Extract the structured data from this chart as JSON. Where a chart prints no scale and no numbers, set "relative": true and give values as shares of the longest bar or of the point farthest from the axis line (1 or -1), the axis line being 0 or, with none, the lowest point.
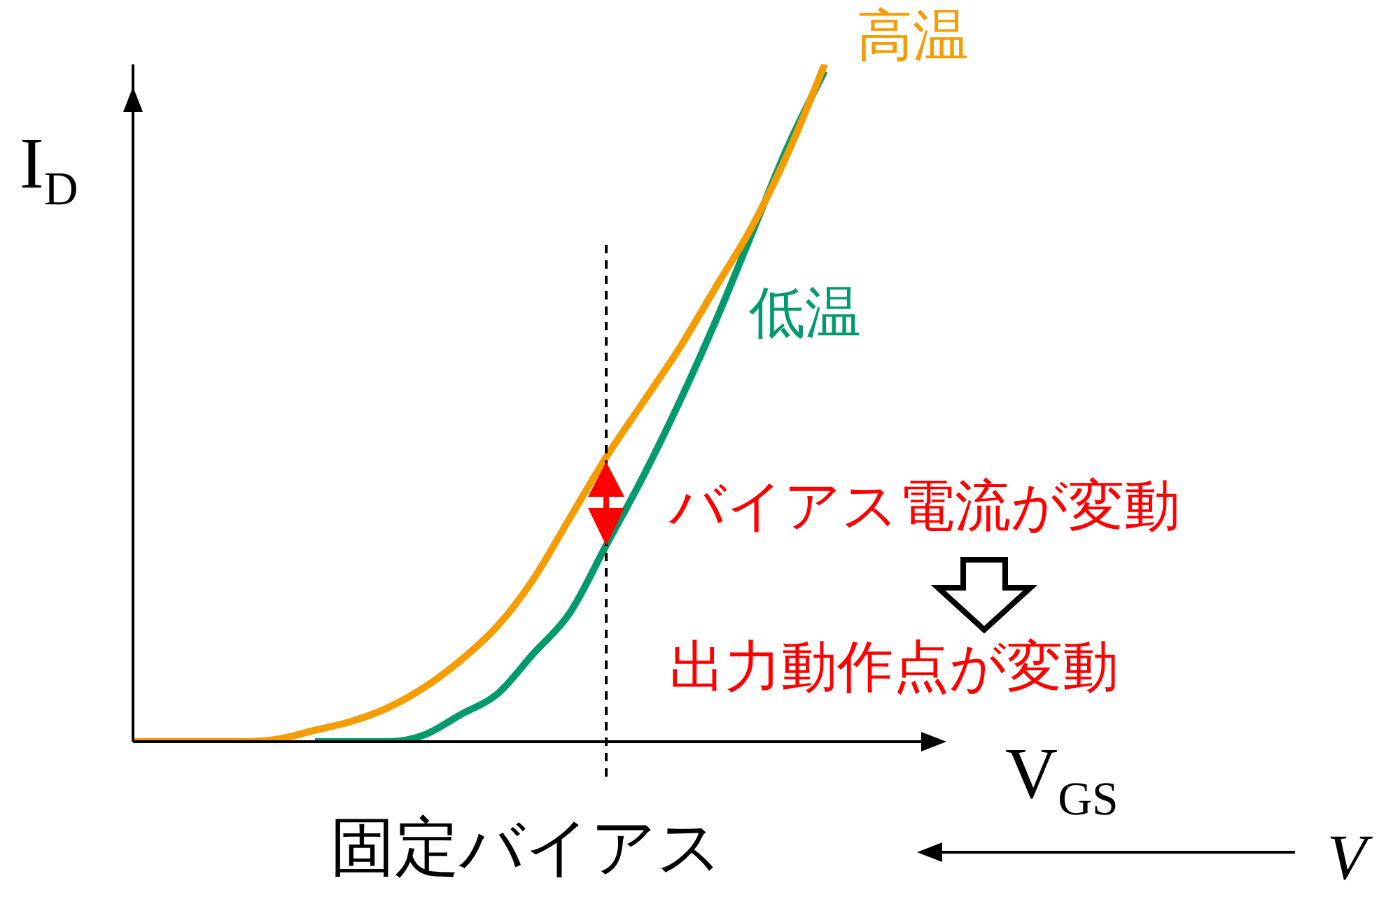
{
  "chart_data": {
    "type": "line",
    "relative": true,
    "xlabel": "V$_{GS}$",
    "ylabel": "I$_{D}$",
    "categories": [
      null,
      null,
      null,
      null,
      null,
      null,
      null,
      null,
      null,
      null,
      null,
      null,
      null,
      null,
      null,
      null,
      null,
      null,
      null,
      null,
      null,
      null,
      null
    ],
    "series": [
      {
        "name": "高温",
        "color": "#f59c00",
        "values": [
          0,
          0,
          0,
          0,
          0.004,
          0.017,
          0.03,
          0.05,
          0.08,
          0.12,
          0.17,
          0.24,
          0.33,
          0.42,
          0.5,
          0.58,
          0.67,
          0.76,
          0.87,
          1,
          null,
          null,
          null
        ]
      },
      {
        "name": "低温",
        "color": "#009a6e",
        "values": [
          null,
          null,
          null,
          null,
          null,
          0,
          0,
          0,
          0.01,
          0.04,
          0.07,
          0.13,
          0.19,
          0.29,
          0.39,
          0.5,
          0.62,
          0.75,
          0.88,
          0.99,
          null,
          null,
          null
        ]
      }
    ],
    "annotations": [
      "バイアス電流が変動",
      "出力動作点が変動",
      "固定バイアス",
      "V"
    ],
    "grid": false,
    "legend": false,
    "marker": "none",
    "line_style": "solid"
  }
}
